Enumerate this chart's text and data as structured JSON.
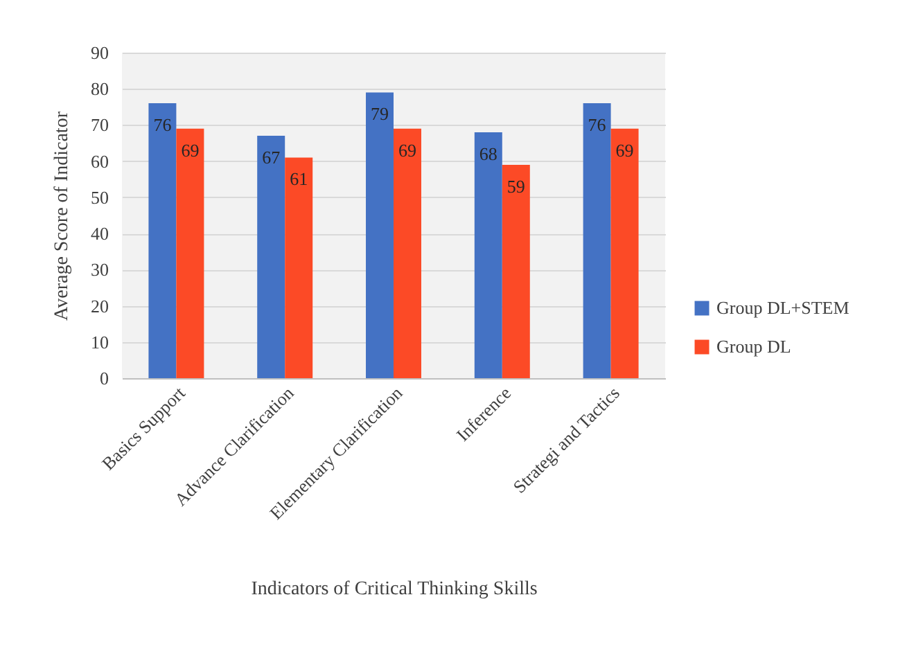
{
  "chart_data": {
    "type": "bar",
    "xlabel": "Indicators of Critical Thinking Skills",
    "ylabel": "Average Score of Indicator",
    "categories": [
      "Basics Support",
      "Advance Clarification",
      "Elementary Clarification",
      "Inference",
      "Strategi and Tactics"
    ],
    "series": [
      {
        "name": "Group DL+STEM",
        "color": "#4472c4",
        "values": [
          76,
          67,
          79,
          68,
          76
        ]
      },
      {
        "name": "Group DL",
        "color": "#fc4a26",
        "values": [
          69,
          61,
          69,
          59,
          69
        ]
      }
    ],
    "ylim": [
      0,
      90
    ],
    "yticks": [
      0,
      10,
      20,
      30,
      40,
      50,
      60,
      70,
      80,
      90
    ],
    "grid": "y",
    "legend": "right",
    "data_labels": true
  }
}
